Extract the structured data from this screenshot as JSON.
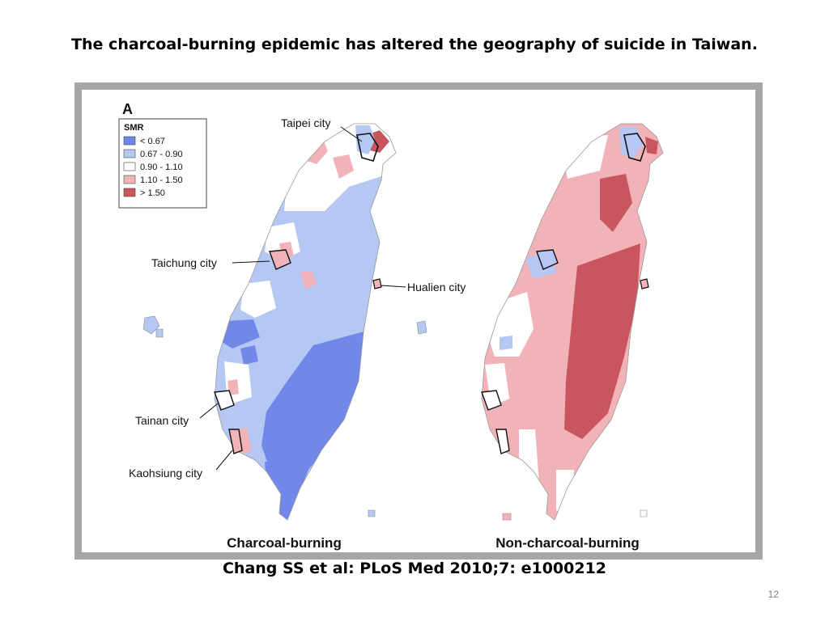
{
  "slide": {
    "title": "The charcoal-burning epidemic has altered the geography of suicide in Taiwan.",
    "citation": "Chang SS et al: PLoS Med 2010;7: e1000212",
    "slide_number": "12"
  },
  "figure": {
    "panel_letter": "A",
    "legend": {
      "title": "SMR",
      "items": [
        {
          "label": "< 0.67",
          "color": "#7187ea"
        },
        {
          "label": "0.67 - 0.90",
          "color": "#b5c8f4"
        },
        {
          "label": "0.90 - 1.10",
          "color": "#ffffff"
        },
        {
          "label": "1.10 - 1.50",
          "color": "#f2b3b8"
        },
        {
          "label": "> 1.50",
          "color": "#c9565f"
        }
      ]
    },
    "city_labels": {
      "taipei": "Taipei city",
      "taichung": "Taichung city",
      "hualien": "Hualien city",
      "tainan": "Tainan city",
      "kaohsiung": "Kaohsiung city"
    },
    "maps": {
      "left_caption": "Charcoal-burning",
      "right_caption": "Non-charcoal-burning"
    }
  }
}
